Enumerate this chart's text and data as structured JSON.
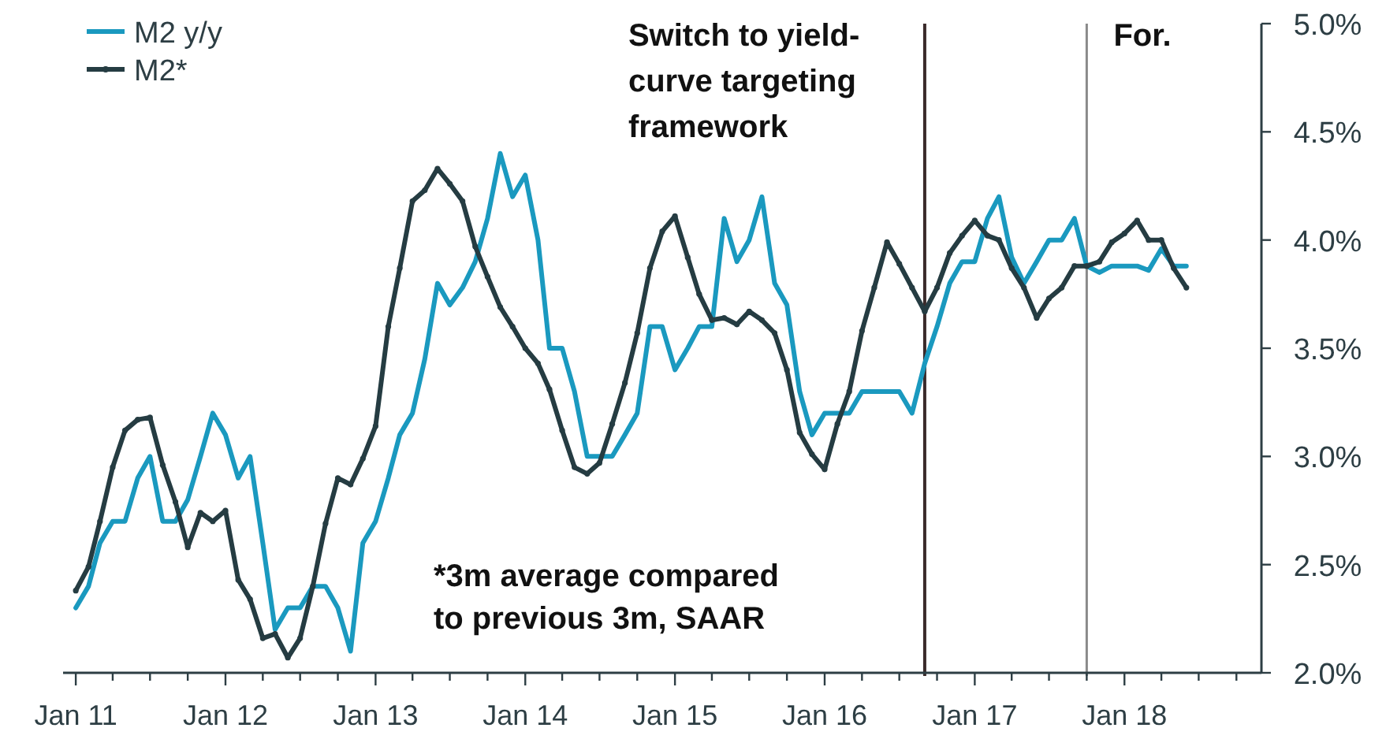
{
  "chart_data": {
    "type": "line",
    "xlim": [
      "2010-12",
      "2018-12"
    ],
    "xticks": [
      {
        "value": "2011-01",
        "label": "Jan 11"
      },
      {
        "value": "2011-04",
        "label": null
      },
      {
        "value": "2011-07",
        "label": null
      },
      {
        "value": "2011-10",
        "label": null
      },
      {
        "value": "2012-01",
        "label": "Jan 12"
      },
      {
        "value": "2012-04",
        "label": null
      },
      {
        "value": "2012-07",
        "label": null
      },
      {
        "value": "2012-10",
        "label": null
      },
      {
        "value": "2013-01",
        "label": "Jan 13"
      },
      {
        "value": "2013-04",
        "label": null
      },
      {
        "value": "2013-07",
        "label": null
      },
      {
        "value": "2013-10",
        "label": null
      },
      {
        "value": "2014-01",
        "label": "Jan 14"
      },
      {
        "value": "2014-04",
        "label": null
      },
      {
        "value": "2014-07",
        "label": null
      },
      {
        "value": "2014-10",
        "label": null
      },
      {
        "value": "2015-01",
        "label": "Jan 15"
      },
      {
        "value": "2015-04",
        "label": null
      },
      {
        "value": "2015-07",
        "label": null
      },
      {
        "value": "2015-10",
        "label": null
      },
      {
        "value": "2016-01",
        "label": "Jan 16"
      },
      {
        "value": "2016-04",
        "label": null
      },
      {
        "value": "2016-07",
        "label": null
      },
      {
        "value": "2016-10",
        "label": null
      },
      {
        "value": "2017-01",
        "label": "Jan 17"
      },
      {
        "value": "2017-04",
        "label": null
      },
      {
        "value": "2017-07",
        "label": null
      },
      {
        "value": "2017-10",
        "label": null
      },
      {
        "value": "2018-01",
        "label": "Jan 18"
      },
      {
        "value": "2018-04",
        "label": null
      },
      {
        "value": "2018-07",
        "label": null
      },
      {
        "value": "2018-10",
        "label": null
      }
    ],
    "ylim": [
      2.0,
      5.0
    ],
    "yticks": [
      {
        "value": 2.0,
        "label": "2.0%"
      },
      {
        "value": 2.5,
        "label": "2.5%"
      },
      {
        "value": 3.0,
        "label": "3.0%"
      },
      {
        "value": 3.5,
        "label": "3.5%"
      },
      {
        "value": 4.0,
        "label": "4.0%"
      },
      {
        "value": 4.5,
        "label": "4.5%"
      },
      {
        "value": 5.0,
        "label": "5.0%"
      }
    ],
    "x": [
      "2011-01",
      "2011-02",
      "2011-03",
      "2011-04",
      "2011-05",
      "2011-06",
      "2011-07",
      "2011-08",
      "2011-09",
      "2011-10",
      "2011-11",
      "2011-12",
      "2012-01",
      "2012-02",
      "2012-03",
      "2012-04",
      "2012-05",
      "2012-06",
      "2012-07",
      "2012-08",
      "2012-09",
      "2012-10",
      "2012-11",
      "2012-12",
      "2013-01",
      "2013-02",
      "2013-03",
      "2013-04",
      "2013-05",
      "2013-06",
      "2013-07",
      "2013-08",
      "2013-09",
      "2013-10",
      "2013-11",
      "2013-12",
      "2014-01",
      "2014-02",
      "2014-03",
      "2014-04",
      "2014-05",
      "2014-06",
      "2014-07",
      "2014-08",
      "2014-09",
      "2014-10",
      "2014-11",
      "2014-12",
      "2015-01",
      "2015-02",
      "2015-03",
      "2015-04",
      "2015-05",
      "2015-06",
      "2015-07",
      "2015-08",
      "2015-09",
      "2015-10",
      "2015-11",
      "2015-12",
      "2016-01",
      "2016-02",
      "2016-03",
      "2016-04",
      "2016-05",
      "2016-06",
      "2016-07",
      "2016-08",
      "2016-09",
      "2016-10",
      "2016-11",
      "2016-12",
      "2017-01",
      "2017-02",
      "2017-03",
      "2017-04",
      "2017-05",
      "2017-06",
      "2017-07",
      "2017-08",
      "2017-09",
      "2017-10",
      "2017-11",
      "2017-12",
      "2018-01",
      "2018-02",
      "2018-03",
      "2018-04",
      "2018-05",
      "2018-06"
    ],
    "series": [
      {
        "name": "M2 y/y",
        "color": "#1a99bf",
        "marker": "none",
        "values": [
          2.3,
          2.4,
          2.6,
          2.7,
          2.7,
          2.9,
          3.0,
          2.7,
          2.7,
          2.8,
          3.0,
          3.2,
          3.1,
          2.9,
          3.0,
          2.6,
          2.2,
          2.3,
          2.3,
          2.4,
          2.4,
          2.3,
          2.1,
          2.6,
          2.7,
          2.9,
          3.1,
          3.2,
          3.45,
          3.8,
          3.7,
          3.78,
          3.9,
          4.1,
          4.4,
          4.2,
          4.3,
          4.0,
          3.5,
          3.5,
          3.3,
          3.0,
          3.0,
          3.0,
          3.1,
          3.2,
          3.6,
          3.6,
          3.4,
          3.5,
          3.6,
          3.6,
          4.1,
          3.9,
          4.0,
          4.2,
          3.8,
          3.7,
          3.3,
          3.1,
          3.2,
          3.2,
          3.2,
          3.3,
          3.3,
          3.3,
          3.3,
          3.2,
          3.43,
          3.6,
          3.8,
          3.9,
          3.9,
          4.1,
          4.2,
          3.92,
          3.8,
          3.9,
          4.0,
          4.0,
          4.1,
          3.88,
          3.85,
          3.88,
          3.88,
          3.88,
          3.86,
          3.96,
          3.88,
          3.88
        ]
      },
      {
        "name": "M2*",
        "color": "#253c42",
        "marker": "circle",
        "values": [
          2.38,
          2.49,
          2.7,
          2.95,
          3.12,
          3.17,
          3.18,
          2.96,
          2.79,
          2.58,
          2.74,
          2.7,
          2.75,
          2.43,
          2.34,
          2.16,
          2.18,
          2.07,
          2.16,
          2.4,
          2.69,
          2.9,
          2.87,
          2.99,
          3.14,
          3.6,
          3.87,
          4.18,
          4.23,
          4.33,
          4.26,
          4.18,
          3.97,
          3.83,
          3.69,
          3.6,
          3.5,
          3.43,
          3.31,
          3.12,
          2.95,
          2.92,
          2.97,
          3.15,
          3.34,
          3.57,
          3.87,
          4.04,
          4.11,
          3.92,
          3.75,
          3.63,
          3.64,
          3.61,
          3.67,
          3.63,
          3.57,
          3.4,
          3.11,
          3.01,
          2.94,
          3.15,
          3.3,
          3.58,
          3.78,
          3.99,
          3.89,
          3.78,
          3.67,
          3.78,
          3.94,
          4.02,
          4.09,
          4.02,
          4.0,
          3.87,
          3.78,
          3.64,
          3.73,
          3.78,
          3.88,
          3.88,
          3.9,
          3.99,
          4.03,
          4.09,
          4.0,
          4.0,
          3.87,
          3.78
        ]
      }
    ],
    "legend": "top left",
    "ref_lines": [
      {
        "axis": "x",
        "value": "2016-09",
        "label": "Switch to yield-curve targeting framework",
        "color": "#3a2a2a"
      },
      {
        "axis": "x",
        "value": "2017-10",
        "label": "For.",
        "color": "#8a8a8a"
      }
    ],
    "annotations": [
      "*3m average compared to previous 3m, SAAR"
    ]
  }
}
